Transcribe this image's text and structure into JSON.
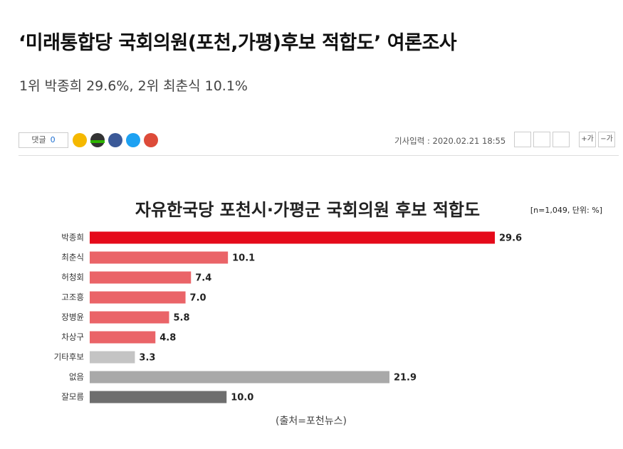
{
  "article": {
    "headline": "‘미래통합당 국회의원(포천,가평)후보 적합도’ 여론조사",
    "subheadline": "1위 박종희 29.6%, 2위 최춘식 10.1%",
    "toolbar": {
      "comments_label": "댓글",
      "comments_count": 0,
      "published": "기사입력 : 2020.02.21 18:55",
      "font_up": "+가",
      "font_down": "−가"
    }
  },
  "chart_data": {
    "type": "bar",
    "orientation": "horizontal",
    "title": "자유한국당 포천시·가평군 국회의원 후보 적합도",
    "note": "[n=1,049, 단위: %]",
    "source": "(출처=포천뉴스)",
    "categories": [
      "박종희",
      "최춘식",
      "허청회",
      "고조흥",
      "장병윤",
      "차상구",
      "기타후보",
      "없음",
      "잘모름"
    ],
    "values": [
      29.6,
      10.1,
      7.4,
      7.0,
      5.8,
      4.8,
      3.3,
      21.9,
      10.0
    ],
    "value_labels": [
      "29.6",
      "10.1",
      "7.4",
      "7.0",
      "5.8",
      "4.8",
      "3.3",
      "21.9",
      "10.0"
    ],
    "colors": [
      "#e50a1a",
      "#ea6468",
      "#ea6468",
      "#ea6468",
      "#ea6468",
      "#ea6468",
      "#c4c4c4",
      "#a9a9a9",
      "#6e6e6e"
    ]
  }
}
